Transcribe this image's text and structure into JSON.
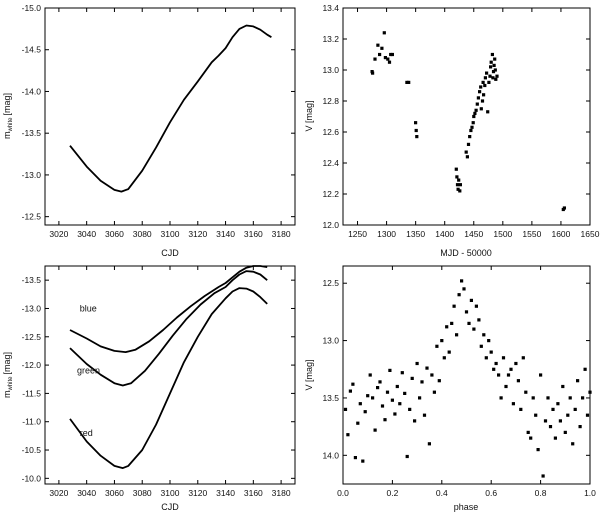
{
  "chart_data": [
    {
      "id": "tl",
      "type": "line",
      "title": "",
      "xlabel": "CJD",
      "ylabel_main": "m",
      "ylabel_sub": "white",
      "ylabel_unit": "[mag]",
      "xlim": [
        3010,
        3190
      ],
      "ylim": [
        -12.4,
        -15.0
      ],
      "xticks": [
        3020,
        3040,
        3060,
        3080,
        3100,
        3120,
        3140,
        3160,
        3180
      ],
      "yticks": [
        -12.5,
        -13.0,
        -13.5,
        -14.0,
        -14.5,
        -15.0
      ],
      "series": [
        {
          "name": "white",
          "x": [
            3028,
            3040,
            3050,
            3060,
            3065,
            3070,
            3080,
            3090,
            3100,
            3110,
            3120,
            3130,
            3135,
            3140,
            3145,
            3150,
            3155,
            3160,
            3165,
            3170,
            3173
          ],
          "y": [
            -13.35,
            -13.1,
            -12.93,
            -12.82,
            -12.8,
            -12.83,
            -13.05,
            -13.33,
            -13.63,
            -13.9,
            -14.12,
            -14.35,
            -14.43,
            -14.52,
            -14.65,
            -14.75,
            -14.79,
            -14.78,
            -14.74,
            -14.68,
            -14.65
          ]
        }
      ]
    },
    {
      "id": "tr",
      "type": "scatter",
      "title": "",
      "xlabel": "MJD - 50000",
      "ylabel": "V [mag]",
      "xlim": [
        1225,
        1650
      ],
      "ylim": [
        12.0,
        13.4
      ],
      "xticks": [
        1250,
        1300,
        1350,
        1400,
        1450,
        1500,
        1550,
        1600,
        1650
      ],
      "yticks": [
        12.0,
        12.2,
        12.4,
        12.6,
        12.8,
        13.0,
        13.2,
        13.4
      ],
      "series": [
        {
          "name": "V",
          "points": [
            [
              1275,
              12.99
            ],
            [
              1276,
              12.98
            ],
            [
              1280,
              13.07
            ],
            [
              1285,
              13.16
            ],
            [
              1288,
              13.1
            ],
            [
              1292,
              13.14
            ],
            [
              1296,
              13.24
            ],
            [
              1298,
              13.08
            ],
            [
              1302,
              13.07
            ],
            [
              1305,
              13.05
            ],
            [
              1307,
              13.1
            ],
            [
              1310,
              13.1
            ],
            [
              1335,
              12.92
            ],
            [
              1338,
              12.92
            ],
            [
              1350,
              12.66
            ],
            [
              1351,
              12.61
            ],
            [
              1352,
              12.57
            ],
            [
              1420,
              12.36
            ],
            [
              1421,
              12.31
            ],
            [
              1422,
              12.26
            ],
            [
              1423,
              12.23
            ],
            [
              1424,
              12.29
            ],
            [
              1426,
              12.22
            ],
            [
              1427,
              12.26
            ],
            [
              1437,
              12.47
            ],
            [
              1439,
              12.44
            ],
            [
              1441,
              12.52
            ],
            [
              1443,
              12.57
            ],
            [
              1445,
              12.61
            ],
            [
              1447,
              12.63
            ],
            [
              1449,
              12.66
            ],
            [
              1450,
              12.7
            ],
            [
              1452,
              12.72
            ],
            [
              1454,
              12.74
            ],
            [
              1456,
              12.78
            ],
            [
              1458,
              12.82
            ],
            [
              1460,
              12.86
            ],
            [
              1462,
              12.89
            ],
            [
              1463,
              12.75
            ],
            [
              1465,
              12.8
            ],
            [
              1466,
              12.92
            ],
            [
              1467,
              12.84
            ],
            [
              1469,
              12.9
            ],
            [
              1470,
              12.95
            ],
            [
              1472,
              12.98
            ],
            [
              1474,
              12.73
            ],
            [
              1476,
              12.92
            ],
            [
              1478,
              12.96
            ],
            [
              1479,
              13.02
            ],
            [
              1480,
              13.05
            ],
            [
              1482,
              13.1
            ],
            [
              1483,
              12.95
            ],
            [
              1484,
              12.99
            ],
            [
              1485,
              13.03
            ],
            [
              1486,
              13.07
            ],
            [
              1487,
              13.0
            ],
            [
              1488,
              12.94
            ],
            [
              1490,
              12.96
            ],
            [
              1604,
              12.1
            ],
            [
              1606,
              12.11
            ]
          ]
        }
      ]
    },
    {
      "id": "bl",
      "type": "line",
      "title": "",
      "xlabel": "CJD",
      "ylabel_main": "m",
      "ylabel_sub": "white",
      "ylabel_unit": "[mag]",
      "xlim": [
        3010,
        3190
      ],
      "ylim": [
        -9.9,
        -13.75
      ],
      "xticks": [
        3020,
        3040,
        3060,
        3080,
        3100,
        3120,
        3140,
        3160,
        3180
      ],
      "yticks": [
        -10.0,
        -10.5,
        -11.0,
        -11.5,
        -12.0,
        -12.5,
        -13.0,
        -13.5
      ],
      "series": [
        {
          "name": "blue",
          "label": "blue",
          "label_x": 3035,
          "label_y": -12.95,
          "x": [
            3028,
            3040,
            3050,
            3060,
            3068,
            3075,
            3085,
            3095,
            3105,
            3115,
            3125,
            3135,
            3140,
            3145,
            3150,
            3155,
            3160,
            3165,
            3170
          ],
          "y": [
            -12.62,
            -12.47,
            -12.33,
            -12.25,
            -12.23,
            -12.27,
            -12.42,
            -12.62,
            -12.84,
            -13.04,
            -13.22,
            -13.38,
            -13.45,
            -13.55,
            -13.65,
            -13.72,
            -13.75,
            -13.75,
            -13.73
          ]
        },
        {
          "name": "green",
          "label": "green",
          "label_x": 3033,
          "label_y": -11.85,
          "x": [
            3028,
            3040,
            3050,
            3060,
            3066,
            3072,
            3082,
            3092,
            3102,
            3112,
            3122,
            3132,
            3140,
            3145,
            3150,
            3155,
            3160,
            3165,
            3170
          ],
          "y": [
            -12.3,
            -12.02,
            -11.83,
            -11.68,
            -11.64,
            -11.68,
            -11.9,
            -12.2,
            -12.52,
            -12.82,
            -13.07,
            -13.27,
            -13.38,
            -13.5,
            -13.6,
            -13.66,
            -13.65,
            -13.6,
            -13.5
          ]
        },
        {
          "name": "red",
          "label": "red",
          "label_x": 3035,
          "label_y": -10.75,
          "x": [
            3028,
            3040,
            3050,
            3060,
            3066,
            3070,
            3080,
            3090,
            3100,
            3110,
            3120,
            3130,
            3140,
            3145,
            3150,
            3155,
            3160,
            3165,
            3170
          ],
          "y": [
            -11.05,
            -10.65,
            -10.4,
            -10.22,
            -10.18,
            -10.22,
            -10.5,
            -10.95,
            -11.5,
            -12.05,
            -12.5,
            -12.9,
            -13.18,
            -13.3,
            -13.36,
            -13.35,
            -13.3,
            -13.2,
            -13.08
          ]
        }
      ]
    },
    {
      "id": "br",
      "type": "scatter",
      "title": "",
      "xlabel": "phase",
      "ylabel": "V [mag]",
      "xlim": [
        0.0,
        1.0
      ],
      "ylim": [
        14.25,
        12.35
      ],
      "xticks": [
        0.0,
        0.2,
        0.4,
        0.6,
        0.8,
        1.0
      ],
      "xtick_labels": [
        "0.0",
        "0.2",
        "0.4",
        "0.6",
        "0.8",
        "1.0"
      ],
      "yticks": [
        14.0,
        13.5,
        13.0,
        12.5
      ],
      "series": [
        {
          "name": "V",
          "points": [
            [
              0.01,
              13.6
            ],
            [
              0.02,
              13.82
            ],
            [
              0.03,
              13.44
            ],
            [
              0.04,
              13.38
            ],
            [
              0.05,
              14.02
            ],
            [
              0.06,
              13.72
            ],
            [
              0.07,
              13.55
            ],
            [
              0.08,
              14.05
            ],
            [
              0.09,
              13.62
            ],
            [
              0.1,
              13.48
            ],
            [
              0.11,
              13.3
            ],
            [
              0.12,
              13.5
            ],
            [
              0.13,
              13.78
            ],
            [
              0.14,
              13.41
            ],
            [
              0.15,
              13.36
            ],
            [
              0.16,
              13.57
            ],
            [
              0.17,
              13.69
            ],
            [
              0.18,
              13.45
            ],
            [
              0.19,
              13.26
            ],
            [
              0.2,
              13.52
            ],
            [
              0.21,
              13.64
            ],
            [
              0.22,
              13.4
            ],
            [
              0.23,
              13.55
            ],
            [
              0.24,
              13.28
            ],
            [
              0.25,
              13.46
            ],
            [
              0.26,
              14.01
            ],
            [
              0.27,
              13.6
            ],
            [
              0.28,
              13.33
            ],
            [
              0.29,
              13.7
            ],
            [
              0.3,
              13.2
            ],
            [
              0.31,
              13.5
            ],
            [
              0.32,
              13.36
            ],
            [
              0.33,
              13.65
            ],
            [
              0.34,
              13.24
            ],
            [
              0.35,
              13.9
            ],
            [
              0.36,
              13.3
            ],
            [
              0.37,
              13.45
            ],
            [
              0.38,
              13.05
            ],
            [
              0.39,
              13.35
            ],
            [
              0.4,
              13.0
            ],
            [
              0.41,
              13.15
            ],
            [
              0.42,
              12.88
            ],
            [
              0.43,
              13.1
            ],
            [
              0.44,
              12.85
            ],
            [
              0.45,
              12.7
            ],
            [
              0.46,
              12.95
            ],
            [
              0.47,
              12.6
            ],
            [
              0.48,
              12.48
            ],
            [
              0.49,
              12.55
            ],
            [
              0.5,
              12.75
            ],
            [
              0.51,
              12.85
            ],
            [
              0.52,
              12.65
            ],
            [
              0.53,
              12.9
            ],
            [
              0.54,
              12.7
            ],
            [
              0.55,
              12.82
            ],
            [
              0.56,
              13.05
            ],
            [
              0.57,
              12.95
            ],
            [
              0.58,
              13.15
            ],
            [
              0.59,
              13.0
            ],
            [
              0.6,
              13.1
            ],
            [
              0.61,
              13.25
            ],
            [
              0.62,
              13.2
            ],
            [
              0.63,
              13.3
            ],
            [
              0.64,
              13.5
            ],
            [
              0.65,
              13.15
            ],
            [
              0.66,
              13.4
            ],
            [
              0.67,
              13.3
            ],
            [
              0.68,
              13.25
            ],
            [
              0.69,
              13.55
            ],
            [
              0.7,
              13.2
            ],
            [
              0.71,
              13.35
            ],
            [
              0.72,
              13.6
            ],
            [
              0.73,
              13.15
            ],
            [
              0.74,
              13.45
            ],
            [
              0.75,
              13.8
            ],
            [
              0.76,
              13.85
            ],
            [
              0.77,
              13.5
            ],
            [
              0.78,
              13.65
            ],
            [
              0.79,
              13.95
            ],
            [
              0.8,
              13.3
            ],
            [
              0.81,
              14.18
            ],
            [
              0.82,
              13.7
            ],
            [
              0.83,
              13.5
            ],
            [
              0.84,
              13.75
            ],
            [
              0.85,
              13.6
            ],
            [
              0.86,
              13.85
            ],
            [
              0.87,
              13.55
            ],
            [
              0.88,
              13.7
            ],
            [
              0.89,
              13.4
            ],
            [
              0.9,
              13.8
            ],
            [
              0.91,
              13.65
            ],
            [
              0.92,
              13.5
            ],
            [
              0.93,
              13.9
            ],
            [
              0.94,
              13.6
            ],
            [
              0.95,
              13.35
            ],
            [
              0.96,
              13.75
            ],
            [
              0.97,
              13.5
            ],
            [
              0.98,
              13.25
            ],
            [
              0.99,
              13.65
            ],
            [
              1.0,
              13.45
            ]
          ]
        }
      ]
    }
  ]
}
